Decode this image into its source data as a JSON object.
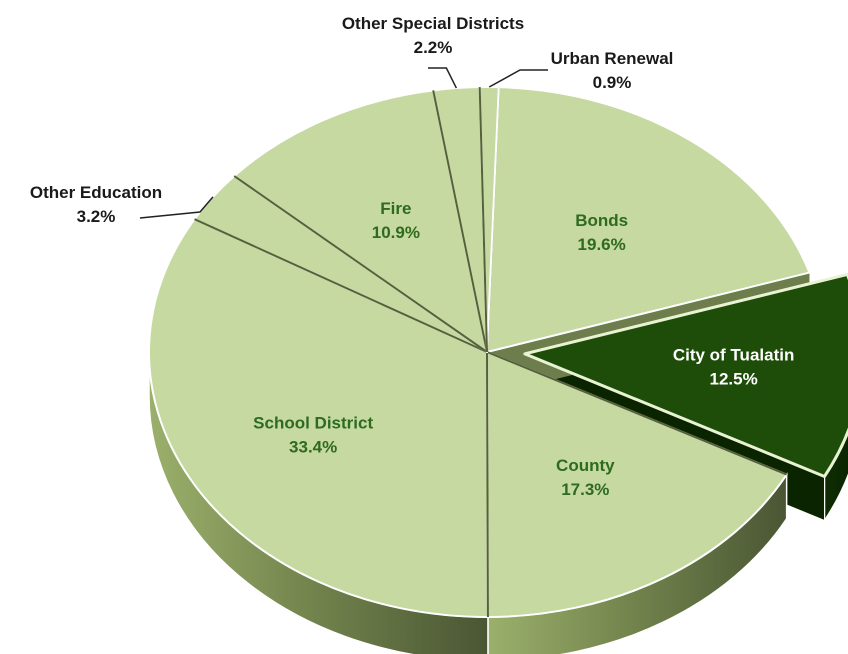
{
  "chart_data": {
    "type": "pie",
    "title": "",
    "legend": "none",
    "slices": [
      {
        "label": "Bonds",
        "value": 19.6,
        "display": "19.6%",
        "color": "#c5d9a1",
        "label_placement": "inside"
      },
      {
        "label": "City of Tualatin",
        "value": 12.5,
        "display": "12.5%",
        "color": "#1d4d08",
        "label_placement": "inside",
        "exploded": true
      },
      {
        "label": "County",
        "value": 17.3,
        "display": "17.3%",
        "color": "#c5d9a1",
        "label_placement": "inside"
      },
      {
        "label": "School District",
        "value": 33.4,
        "display": "33.4%",
        "color": "#c5d9a1",
        "label_placement": "inside"
      },
      {
        "label": "Other Education",
        "value": 3.2,
        "display": "3.2%",
        "color": "#c5d9a1",
        "label_placement": "outside"
      },
      {
        "label": "Fire",
        "value": 10.9,
        "display": "10.9%",
        "color": "#c5d9a1",
        "label_placement": "inside"
      },
      {
        "label": "Other Special Districts",
        "value": 2.2,
        "display": "2.2%",
        "color": "#c5d9a1",
        "label_placement": "outside"
      },
      {
        "label": "Urban Renewal",
        "value": 0.9,
        "display": "0.9%",
        "color": "#c5d9a1",
        "label_placement": "outside"
      }
    ],
    "colors": {
      "slice_fill": "#c5d9a1",
      "highlight_fill": "#1d4d08",
      "inside_label": "#2e6b1f",
      "highlight_label": "#ffffff",
      "outside_label": "#1a1a1a",
      "slice_border": "#ffffff"
    }
  }
}
